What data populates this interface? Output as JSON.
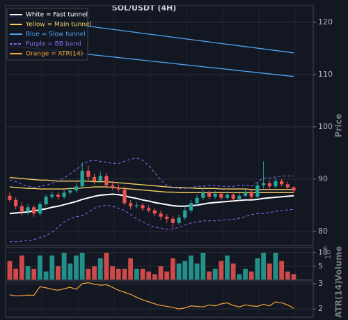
{
  "chart_data": {
    "type": "candlestick",
    "title": "SOL/USDT (4H)",
    "legend_corner": "upper left",
    "grid": true,
    "up_color": "#26a69a",
    "down_color": "#ef5350",
    "price": {
      "label": "Price",
      "ylim": [
        77.3,
        123.2
      ],
      "yticks": [
        80,
        90,
        100,
        110,
        120
      ],
      "open": [
        86.8,
        86.0,
        84.8,
        83.8,
        84.6,
        83.4,
        85.2,
        86.6,
        87.0,
        86.6,
        87.4,
        87.8,
        88.6,
        91.6,
        90.4,
        89.6,
        90.6,
        88.8,
        88.4,
        88.0,
        85.4,
        84.8,
        85.0,
        84.4,
        84.0,
        83.4,
        82.8,
        82.4,
        81.6,
        82.6,
        84.0,
        85.4,
        86.4,
        87.4,
        86.6,
        87.2,
        86.4,
        87.0,
        86.2,
        86.8,
        87.4,
        86.6,
        88.8,
        89.2,
        88.6,
        89.6,
        89.0,
        88.4
      ],
      "high": [
        87.5,
        86.5,
        85.6,
        85.2,
        85.0,
        85.8,
        87.0,
        87.6,
        87.5,
        87.9,
        88.4,
        89.2,
        93.2,
        92.6,
        91.0,
        91.4,
        91.2,
        89.6,
        89.0,
        88.6,
        86.0,
        85.6,
        85.4,
        85.0,
        84.5,
        84.0,
        83.3,
        82.9,
        83.2,
        84.6,
        86.0,
        87.0,
        88.4,
        87.8,
        87.8,
        87.6,
        87.6,
        87.5,
        87.3,
        88.0,
        87.9,
        89.5,
        93.4,
        89.8,
        90.2,
        90.0,
        89.5,
        88.6
      ],
      "low": [
        85.6,
        84.2,
        83.0,
        83.2,
        82.8,
        83.0,
        84.8,
        86.2,
        86.0,
        86.2,
        87.0,
        87.4,
        88.2,
        89.8,
        89.0,
        89.2,
        88.2,
        87.9,
        87.4,
        85.0,
        84.2,
        84.4,
        83.9,
        83.6,
        82.9,
        82.2,
        81.6,
        80.6,
        81.2,
        82.2,
        83.6,
        85.0,
        86.0,
        86.1,
        86.2,
        86.0,
        86.1,
        85.8,
        85.9,
        86.5,
        86.2,
        86.2,
        88.2,
        88.0,
        88.2,
        88.6,
        87.9,
        87.3
      ],
      "close": [
        86.0,
        84.8,
        83.8,
        84.6,
        83.4,
        85.2,
        86.6,
        87.0,
        86.6,
        87.4,
        87.8,
        88.6,
        91.6,
        90.4,
        89.6,
        90.6,
        88.8,
        88.4,
        88.0,
        85.4,
        84.8,
        85.0,
        84.4,
        84.0,
        83.4,
        82.8,
        82.4,
        81.6,
        82.6,
        84.0,
        85.4,
        86.4,
        87.4,
        86.6,
        87.2,
        86.4,
        87.0,
        86.2,
        86.8,
        87.4,
        86.6,
        88.8,
        89.2,
        88.6,
        89.6,
        89.0,
        88.4,
        87.8
      ],
      "overlays": [
        {
          "name": "White = Fast tunnel",
          "color": "#ffffff",
          "dash": false,
          "width": 2,
          "lines": [
            [
              83.4,
              83.5,
              83.6,
              83.7,
              83.9,
              84.1,
              84.3,
              84.6,
              84.8,
              85.1,
              85.4,
              85.7,
              86.1,
              86.4,
              86.7,
              86.9,
              87.0,
              87.1,
              87.0,
              86.8,
              86.5,
              86.3,
              86.0,
              85.8,
              85.5,
              85.3,
              85.1,
              84.9,
              84.8,
              84.8,
              84.9,
              85.0,
              85.2,
              85.4,
              85.5,
              85.6,
              85.7,
              85.8,
              85.9,
              86.0,
              86.0,
              86.1,
              86.3,
              86.4,
              86.5,
              86.6,
              86.7,
              86.8
            ]
          ]
        },
        {
          "name": "Yellow = Main tunnel",
          "color": "#f5d061",
          "dash": false,
          "width": 1.3,
          "lines": [
            [
              90.3,
              90.2,
              90.1,
              90.0,
              89.9,
              89.8,
              89.8,
              89.7,
              89.6,
              89.6,
              89.6,
              89.6,
              89.6,
              89.6,
              89.5,
              89.5,
              89.5,
              89.4,
              89.3,
              89.2,
              89.1,
              89.0,
              88.9,
              88.8,
              88.7,
              88.6,
              88.5,
              88.4,
              88.4,
              88.3,
              88.3,
              88.2,
              88.2,
              88.2,
              88.2,
              88.1,
              88.1,
              88.1,
              88.1,
              88.1,
              88.0,
              88.0,
              88.0,
              88.0,
              88.0,
              88.0,
              88.0,
              88.0
            ],
            [
              88.5,
              88.4,
              88.3,
              88.2,
              88.2,
              88.1,
              88.1,
              88.1,
              88.1,
              88.1,
              88.2,
              88.2,
              88.3,
              88.4,
              88.5,
              88.5,
              88.5,
              88.4,
              88.3,
              88.2,
              88.1,
              88.0,
              87.9,
              87.8,
              87.7,
              87.6,
              87.5,
              87.5,
              87.4,
              87.4,
              87.4,
              87.4,
              87.4,
              87.4,
              87.4,
              87.4,
              87.4,
              87.4,
              87.4,
              87.4,
              87.4,
              87.4,
              87.4,
              87.4,
              87.4,
              87.4,
              87.4,
              87.4
            ]
          ]
        },
        {
          "name": "Blue = Slow tunnel",
          "color": "#4fa3f0",
          "dash": false,
          "width": 1.3,
          "lines": [
            [
              121.2,
              121.05,
              120.9,
              120.75,
              120.6,
              120.45,
              120.3,
              120.15,
              120.0,
              119.85,
              119.7,
              119.55,
              119.4,
              119.25,
              119.1,
              118.95,
              118.8,
              118.65,
              118.5,
              118.35,
              118.2,
              118.05,
              117.9,
              117.75,
              117.6,
              117.45,
              117.3,
              117.15,
              117.0,
              116.85,
              116.7,
              116.55,
              116.4,
              116.25,
              116.1,
              115.95,
              115.8,
              115.65,
              115.5,
              115.35,
              115.2,
              115.05,
              114.9,
              114.75,
              114.6,
              114.45,
              114.3,
              114.15
            ],
            [
              115.5,
              115.38,
              115.25,
              115.13,
              115.0,
              114.88,
              114.75,
              114.63,
              114.5,
              114.38,
              114.25,
              114.13,
              114.0,
              113.88,
              113.75,
              113.63,
              113.5,
              113.38,
              113.25,
              113.13,
              113.0,
              112.88,
              112.75,
              112.63,
              112.5,
              112.38,
              112.25,
              112.13,
              112.0,
              111.88,
              111.75,
              111.63,
              111.5,
              111.38,
              111.25,
              111.13,
              111.0,
              110.88,
              110.75,
              110.63,
              110.5,
              110.38,
              110.25,
              110.13,
              110.0,
              109.88,
              109.75,
              109.63
            ]
          ]
        },
        {
          "name": "Purple = BB band",
          "color": "#8a6cf0",
          "dash": true,
          "width": 1,
          "lines": [
            [
              89.8,
              89.5,
              89.0,
              88.6,
              88.4,
              88.6,
              88.8,
              89.2,
              89.6,
              90.2,
              91.0,
              91.8,
              92.8,
              93.4,
              93.6,
              93.4,
              93.2,
              93.0,
              93.0,
              93.4,
              93.8,
              94.0,
              93.6,
              92.6,
              91.2,
              89.8,
              88.8,
              88.4,
              88.2,
              88.2,
              88.4,
              88.6,
              88.6,
              88.8,
              88.8,
              88.6,
              88.6,
              88.6,
              88.8,
              88.8,
              88.6,
              89.4,
              90.2,
              90.2,
              90.4,
              90.6,
              90.6,
              90.6
            ],
            [
              78.0,
              78.0,
              78.1,
              78.2,
              78.4,
              78.8,
              79.2,
              79.8,
              80.8,
              81.8,
              82.4,
              82.8,
              83.0,
              83.6,
              84.4,
              84.8,
              85.0,
              84.8,
              84.4,
              84.0,
              83.2,
              82.4,
              81.8,
              81.2,
              80.8,
              80.6,
              80.4,
              80.4,
              80.8,
              81.2,
              81.6,
              81.8,
              82.0,
              82.0,
              82.0,
              82.1,
              82.2,
              82.3,
              82.5,
              82.8,
              83.2,
              83.4,
              83.4,
              83.6,
              83.8,
              84.0,
              84.1,
              84.2
            ]
          ]
        }
      ]
    },
    "volume": {
      "label": "Volume",
      "multiplier_base": 10,
      "multiplier_exponent": 6,
      "ylim": [
        0,
        12
      ],
      "yticks": [
        5,
        10
      ],
      "values": [
        7,
        4,
        9,
        5,
        4,
        9,
        3,
        9,
        5,
        10,
        6,
        9,
        10,
        4,
        5,
        8,
        10,
        5,
        4,
        4,
        8,
        4,
        4,
        3,
        2,
        5,
        3,
        8,
        6,
        7,
        9,
        6,
        10,
        3,
        4,
        7,
        9,
        6,
        2,
        4,
        3,
        8,
        10,
        6,
        10,
        7,
        3,
        2
      ]
    },
    "atr": {
      "label": "ATR(14)",
      "name": "Orange = ATR(14)",
      "color": "#f7a53a",
      "ylim": [
        1.67,
        3.11
      ],
      "yticks": [
        2,
        3
      ],
      "values": [
        2.56,
        2.52,
        2.53,
        2.55,
        2.54,
        2.88,
        2.84,
        2.78,
        2.74,
        2.8,
        2.86,
        2.78,
        3.0,
        3.04,
        2.98,
        2.94,
        2.96,
        2.86,
        2.74,
        2.66,
        2.58,
        2.46,
        2.36,
        2.28,
        2.2,
        2.14,
        2.1,
        2.06,
        2.0,
        2.04,
        2.12,
        2.1,
        2.08,
        2.16,
        2.12,
        2.2,
        2.24,
        2.14,
        2.08,
        2.16,
        2.12,
        2.1,
        2.18,
        2.12,
        2.28,
        2.24,
        2.16,
        2.02
      ]
    }
  }
}
